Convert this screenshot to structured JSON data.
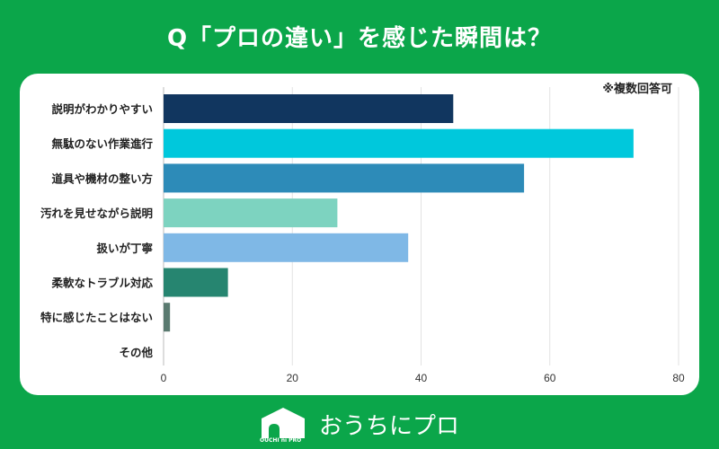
{
  "title": "Q「プロの違い」を感じた瞬間は？",
  "note": "※複数回答可",
  "brand": {
    "name": "おうちにプロ",
    "logo_text": "OUCHI ni PRO"
  },
  "colors": {
    "background": "#0ba64a",
    "card": "#ffffff"
  },
  "chart_data": {
    "type": "bar",
    "orientation": "horizontal",
    "categories": [
      "説明がわかりやすい",
      "無駄のない作業進行",
      "道具や機材の整い方",
      "汚れを見せながら説明",
      "扱いが丁寧",
      "柔軟なトラブル対応",
      "特に感じたことはない",
      "その他"
    ],
    "values": [
      45,
      73,
      56,
      27,
      38,
      10,
      1,
      0
    ],
    "bar_colors": [
      "#11365f",
      "#00c8dc",
      "#2d8bb8",
      "#7dd3c0",
      "#7fb8e6",
      "#268570",
      "#5a7a70",
      "#999999"
    ],
    "xlim": [
      0,
      80
    ],
    "xticks": [
      0,
      20,
      40,
      60,
      80
    ],
    "grid": true,
    "title": "",
    "xlabel": "",
    "ylabel": ""
  }
}
